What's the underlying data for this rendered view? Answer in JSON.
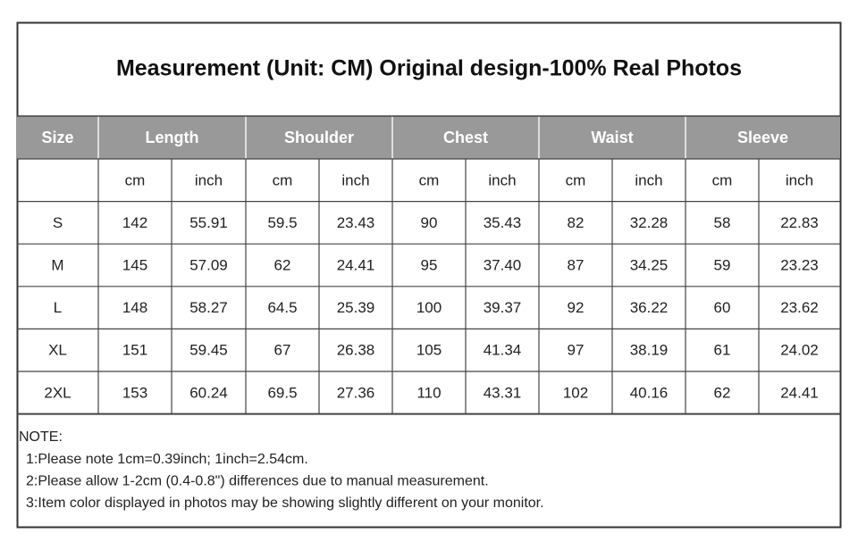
{
  "title": "Measurement (Unit: CM) Original design-100% Real Photos",
  "table": {
    "header": [
      "Size",
      "Length",
      "Shoulder",
      "Chest",
      "Waist",
      "Sleeve"
    ],
    "units": [
      "cm",
      "inch",
      "cm",
      "inch",
      "cm",
      "inch",
      "cm",
      "inch",
      "cm",
      "inch"
    ],
    "rows": [
      [
        "S",
        "142",
        "55.91",
        "59.5",
        "23.43",
        "90",
        "35.43",
        "82",
        "32.28",
        "58",
        "22.83"
      ],
      [
        "M",
        "145",
        "57.09",
        "62",
        "24.41",
        "95",
        "37.40",
        "87",
        "34.25",
        "59",
        "23.23"
      ],
      [
        "L",
        "148",
        "58.27",
        "64.5",
        "25.39",
        "100",
        "39.37",
        "92",
        "36.22",
        "60",
        "23.62"
      ],
      [
        "XL",
        "151",
        "59.45",
        "67",
        "26.38",
        "105",
        "41.34",
        "97",
        "38.19",
        "61",
        "24.02"
      ],
      [
        "2XL",
        "153",
        "60.24",
        "69.5",
        "27.36",
        "110",
        "43.31",
        "102",
        "40.16",
        "62",
        "24.41"
      ]
    ]
  },
  "notes": {
    "label": "NOTE:",
    "items": [
      "1:Please note 1cm=0.39inch; 1inch=2.54cm.",
      "2:Please allow 1-2cm (0.4-0.8\") differences due to manual measurement.",
      "3:Item color displayed in photos may be showing slightly different on your monitor."
    ]
  }
}
